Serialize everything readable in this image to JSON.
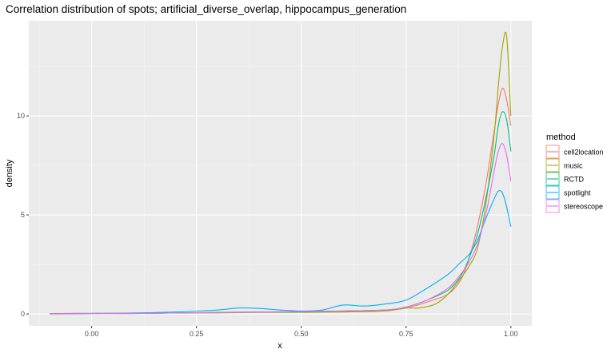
{
  "chart_data": {
    "type": "line",
    "title": "Correlation distribution of spots; artificial_diverse_overlap, hippocampus_generation",
    "xlabel": "x",
    "ylabel": "density",
    "xlim": [
      -0.15,
      1.05
    ],
    "ylim": [
      -0.6,
      14.8
    ],
    "x_ticks": [
      0.0,
      0.25,
      0.5,
      0.75,
      1.0
    ],
    "x_tick_labels": [
      "0.00",
      "0.25",
      "0.50",
      "0.75",
      "1.00"
    ],
    "y_ticks": [
      0,
      5,
      10
    ],
    "y_tick_labels": [
      "0",
      "5",
      "10"
    ],
    "grid": true,
    "legend_title": "method",
    "legend_position": "right",
    "series": [
      {
        "name": "cell2location",
        "color": "#F8766D",
        "x": [
          -0.1,
          0.0,
          0.1,
          0.2,
          0.3,
          0.4,
          0.5,
          0.6,
          0.7,
          0.75,
          0.8,
          0.85,
          0.88,
          0.9,
          0.92,
          0.94,
          0.96,
          0.97,
          0.98,
          0.99,
          1.0
        ],
        "y": [
          0.02,
          0.03,
          0.03,
          0.05,
          0.08,
          0.1,
          0.12,
          0.15,
          0.2,
          0.3,
          0.6,
          1.0,
          1.7,
          2.8,
          4.4,
          6.5,
          9.2,
          10.6,
          11.4,
          10.8,
          9.5
        ]
      },
      {
        "name": "music",
        "color": "#A3A500",
        "x": [
          -0.1,
          0.0,
          0.1,
          0.2,
          0.3,
          0.4,
          0.5,
          0.6,
          0.7,
          0.75,
          0.78,
          0.82,
          0.85,
          0.88,
          0.9,
          0.92,
          0.94,
          0.96,
          0.97,
          0.98,
          0.99,
          1.0
        ],
        "y": [
          0.0,
          0.02,
          0.02,
          0.05,
          0.05,
          0.08,
          0.08,
          0.1,
          0.15,
          0.3,
          0.3,
          0.5,
          1.0,
          1.8,
          2.4,
          3.3,
          5.5,
          9.0,
          11.5,
          13.5,
          14.0,
          10.0
        ]
      },
      {
        "name": "RCTD",
        "color": "#00BF7D",
        "x": [
          -0.1,
          0.0,
          0.1,
          0.2,
          0.3,
          0.4,
          0.5,
          0.6,
          0.7,
          0.75,
          0.8,
          0.85,
          0.88,
          0.9,
          0.92,
          0.94,
          0.96,
          0.97,
          0.98,
          0.99,
          1.0
        ],
        "y": [
          0.02,
          0.03,
          0.03,
          0.05,
          0.08,
          0.1,
          0.12,
          0.15,
          0.2,
          0.35,
          0.7,
          1.2,
          1.9,
          2.8,
          4.0,
          5.8,
          8.0,
          9.5,
          10.2,
          9.8,
          8.2
        ]
      },
      {
        "name": "spotlight",
        "color": "#00B0F6",
        "x": [
          -0.1,
          0.0,
          0.1,
          0.2,
          0.3,
          0.35,
          0.4,
          0.45,
          0.5,
          0.55,
          0.6,
          0.65,
          0.7,
          0.75,
          0.8,
          0.85,
          0.88,
          0.9,
          0.92,
          0.94,
          0.96,
          0.97,
          0.98,
          0.99,
          1.0
        ],
        "y": [
          0.02,
          0.02,
          0.05,
          0.1,
          0.2,
          0.3,
          0.28,
          0.2,
          0.15,
          0.2,
          0.45,
          0.4,
          0.5,
          0.7,
          1.3,
          2.0,
          2.6,
          3.0,
          3.7,
          4.8,
          5.8,
          6.2,
          6.1,
          5.4,
          4.4
        ]
      },
      {
        "name": "stereoscope",
        "color": "#E76BF3",
        "x": [
          -0.1,
          0.0,
          0.1,
          0.2,
          0.3,
          0.4,
          0.5,
          0.6,
          0.7,
          0.75,
          0.8,
          0.85,
          0.88,
          0.9,
          0.92,
          0.94,
          0.96,
          0.97,
          0.98,
          0.99,
          1.0
        ],
        "y": [
          0.02,
          0.03,
          0.03,
          0.05,
          0.07,
          0.1,
          0.12,
          0.15,
          0.2,
          0.35,
          0.7,
          1.3,
          2.0,
          2.6,
          3.5,
          5.0,
          7.2,
          8.2,
          8.6,
          8.0,
          6.7
        ]
      }
    ]
  }
}
